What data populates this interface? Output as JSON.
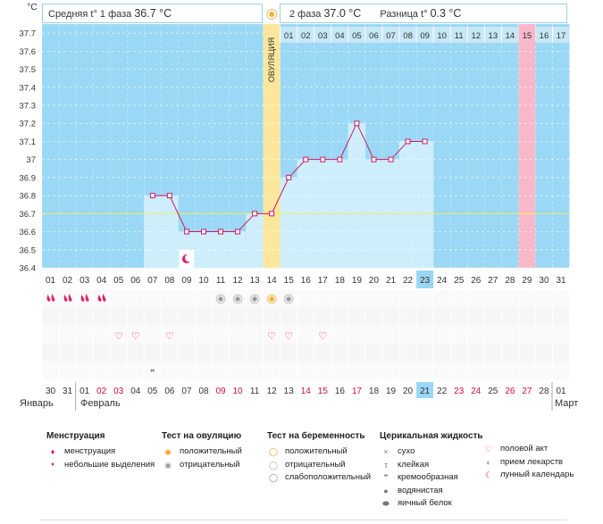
{
  "header": {
    "unit": "°C",
    "phase1_label": "Средняя t° 1 фаза",
    "phase1_value": "36.7 °C",
    "phase2_label": "2 фаза",
    "phase2_value": "37.0 °C",
    "diff_label": "Разница t°",
    "diff_value": "0.3 °C"
  },
  "chart_data": {
    "type": "line",
    "y_ticks": [
      "36.4",
      "36.5",
      "36.6",
      "36.7",
      "36.8",
      "36.9",
      "37",
      "37.1",
      "37.2",
      "37.3",
      "37.4",
      "37.5",
      "37.6",
      "37.7"
    ],
    "ylim": [
      36.4,
      37.75
    ],
    "cycle_days": [
      "01",
      "02",
      "03",
      "04",
      "05",
      "06",
      "07",
      "08",
      "09",
      "10",
      "11",
      "12",
      "13",
      "14",
      "15",
      "16",
      "17",
      "18",
      "19",
      "20",
      "21",
      "22",
      "23",
      "24",
      "25",
      "26",
      "27",
      "28",
      "29",
      "30",
      "31"
    ],
    "post_ovulation_days": [
      "01",
      "02",
      "03",
      "04",
      "05",
      "06",
      "07",
      "08",
      "09",
      "10",
      "11",
      "12",
      "13",
      "14",
      "15",
      "16",
      "17"
    ],
    "ovulation_label": "ОВУЛЯЦИЯ",
    "ovulation_day": 14,
    "highlight_day": 23,
    "pink_day": 29,
    "temps": [
      null,
      null,
      null,
      null,
      null,
      null,
      36.8,
      36.8,
      36.6,
      36.6,
      36.6,
      36.6,
      36.7,
      36.7,
      36.9,
      37.0,
      37.0,
      37.0,
      37.2,
      37.0,
      37.0,
      37.1,
      37.1,
      null,
      null,
      null,
      null,
      null,
      null,
      null,
      null
    ],
    "coverline": 36.7,
    "moon_day": 9,
    "menstruation_days": [
      1,
      2,
      3,
      4
    ],
    "ovulation_test_negative_days": [
      11,
      12,
      13,
      15
    ],
    "ovulation_test_positive_days": [
      14
    ],
    "intercourse_days": [
      5,
      6,
      8,
      14,
      15,
      17
    ],
    "cervical_creamy_days": [
      7
    ]
  },
  "dates": {
    "labels": [
      "30",
      "31",
      "01",
      "02",
      "03",
      "04",
      "05",
      "06",
      "07",
      "08",
      "09",
      "10",
      "11",
      "12",
      "13",
      "14",
      "15",
      "16",
      "17",
      "18",
      "19",
      "20",
      "21",
      "22",
      "23",
      "24",
      "25",
      "26",
      "27",
      "28",
      "01"
    ],
    "red_indices": [
      3,
      4,
      10,
      11,
      15,
      16,
      18,
      24,
      25,
      27,
      28
    ],
    "highlight_index": 22,
    "month_left": "Январь",
    "month_mid": "Февраль",
    "month_right": "Март"
  },
  "legend": {
    "menstruation": {
      "title": "Менструация",
      "items": [
        "менструация",
        "небольшие выделения"
      ]
    },
    "ovulation_test": {
      "title": "Тест на овуляцию",
      "items": [
        "положительный",
        "отрицательный"
      ]
    },
    "pregnancy_test": {
      "title": "Тест на беременность",
      "items": [
        "положительный",
        "отрицательный",
        "слабоположительный"
      ]
    },
    "cervical": {
      "title": "Церикальная жидкость",
      "items": [
        "сухо",
        "клейкая",
        "кремообразная",
        "водянистая",
        "яичный белок"
      ]
    },
    "other": {
      "items": [
        "половой акт",
        "прием лекарств",
        "лунный календарь"
      ]
    }
  },
  "colors": {
    "bg": "#9bd8f5",
    "bar": "#ceeefc",
    "line": "#d01862",
    "ovulation": "#fbe79c",
    "pink": "#f7b9c9",
    "highlight": "#9ad7f5"
  }
}
